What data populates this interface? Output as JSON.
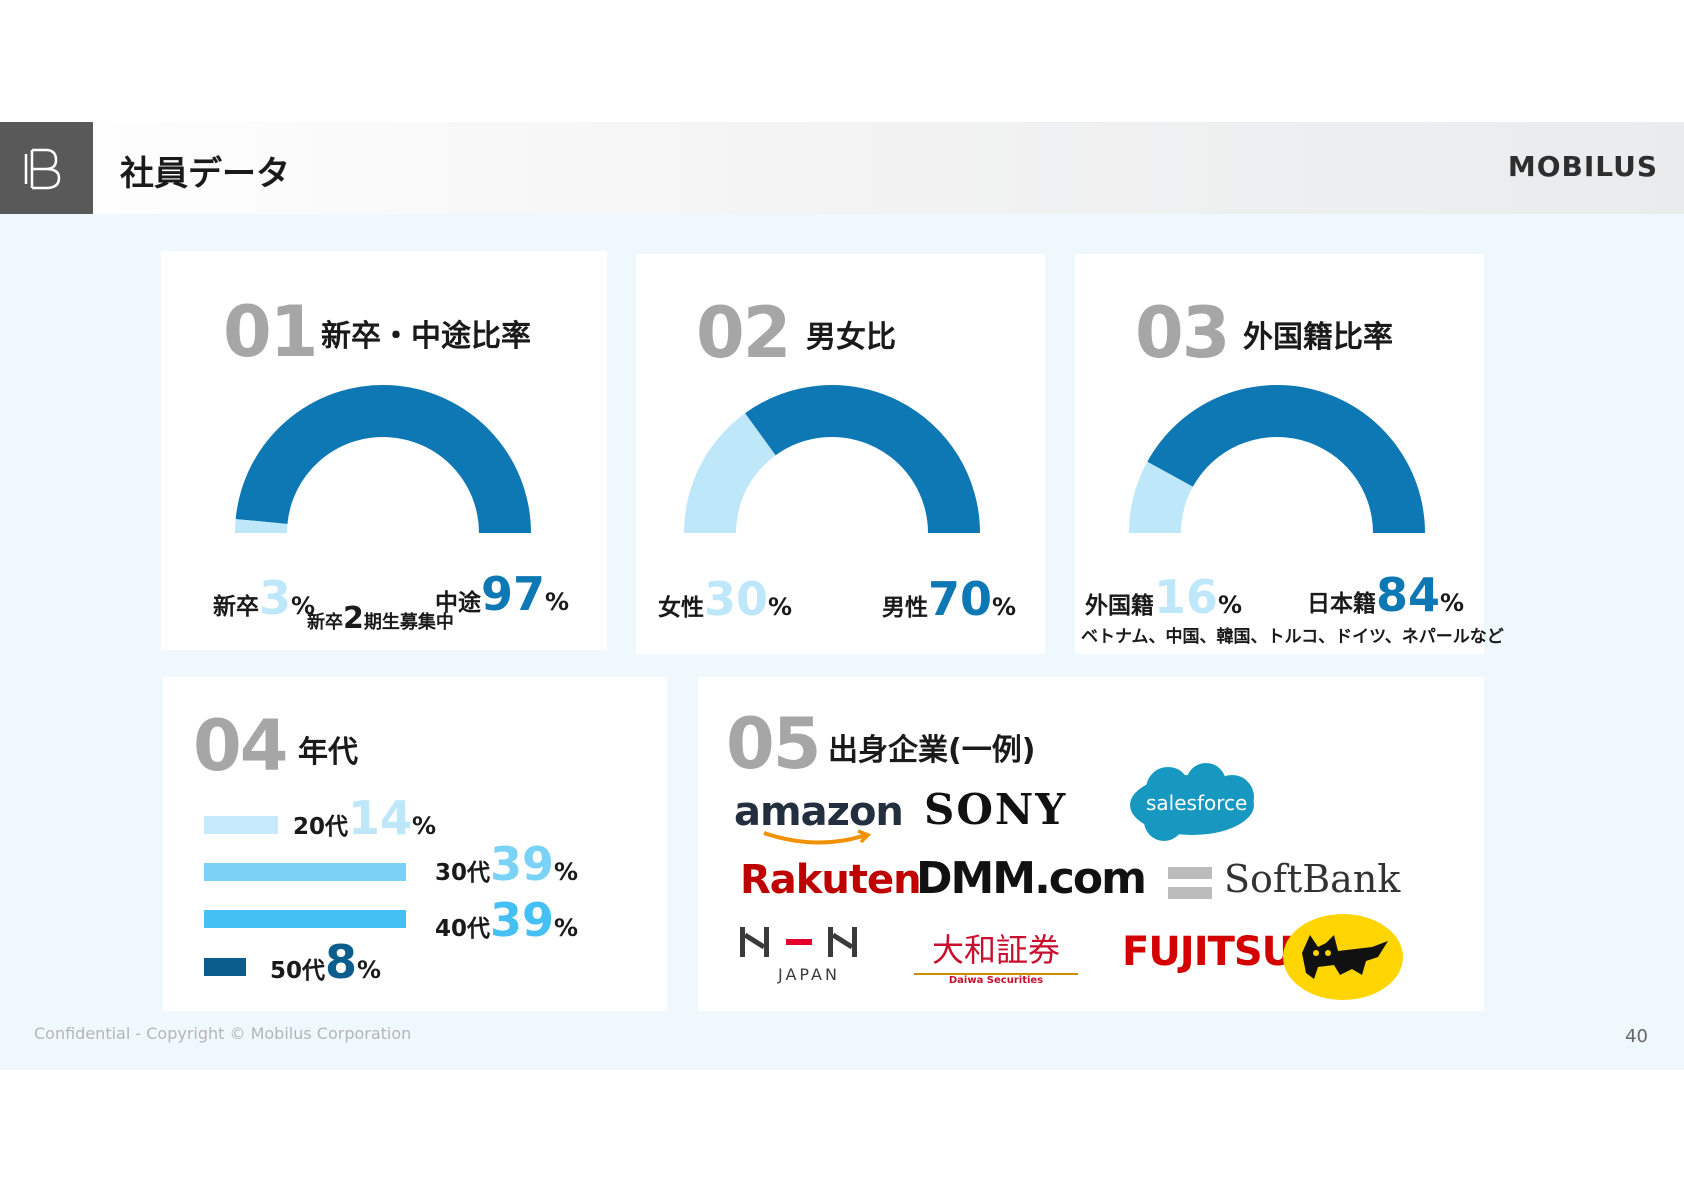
{
  "header": {
    "title": "社員データ",
    "brand": "MOBILUS",
    "icon": "b-logo-icon"
  },
  "cards": {
    "c1": {
      "number": "01",
      "title": "新卒・中途比率",
      "left_label": "新卒",
      "left_value": "3",
      "right_label": "中途",
      "right_value": "97",
      "unit": "%",
      "note_prefix": "新卒",
      "note_num": "2",
      "note_suffix": "期生募集中"
    },
    "c2": {
      "number": "02",
      "title": "男女比",
      "left_label": "女性",
      "left_value": "30",
      "right_label": "男性",
      "right_value": "70",
      "unit": "%"
    },
    "c3": {
      "number": "03",
      "title": "外国籍比率",
      "left_label": "外国籍",
      "left_value": "16",
      "right_label": "日本籍",
      "right_value": "84",
      "unit": "%",
      "note": "ベトナム、中国、韓国、トルコ、ドイツ、ネパールなど"
    },
    "c4": {
      "number": "04",
      "title": "年代",
      "rows": [
        {
          "label": "20代",
          "value": "14",
          "unit": "%"
        },
        {
          "label": "30代",
          "value": "39",
          "unit": "%"
        },
        {
          "label": "40代",
          "value": "39",
          "unit": "%"
        },
        {
          "label": "50代",
          "value": "8",
          "unit": "%"
        }
      ]
    },
    "c5": {
      "number": "05",
      "title": "出身企業(一例)",
      "logos": {
        "amazon": "amazon",
        "sony": "SONY",
        "salesforce": "salesforce",
        "rakuten": "Rakuten",
        "dmm": "DMM.com",
        "softbank": "SoftBank",
        "nhn": "NHN",
        "nhn_sub": "JAPAN",
        "daiwa": "大和証券",
        "daiwa_sub": "Daiwa Securities",
        "fujitsu": "FUJITSU"
      }
    }
  },
  "colors": {
    "dark": "#0d78b3",
    "light": "#bfe7fa",
    "mid": "#62c9f5",
    "bar20": "#c5eafb",
    "bar30": "#7ad2f7",
    "bar40": "#45c0f5",
    "bar50": "#0b5d8e"
  },
  "footer": {
    "copyright": "Confidential - Copyright © Mobilus Corporation",
    "page": "40"
  }
}
